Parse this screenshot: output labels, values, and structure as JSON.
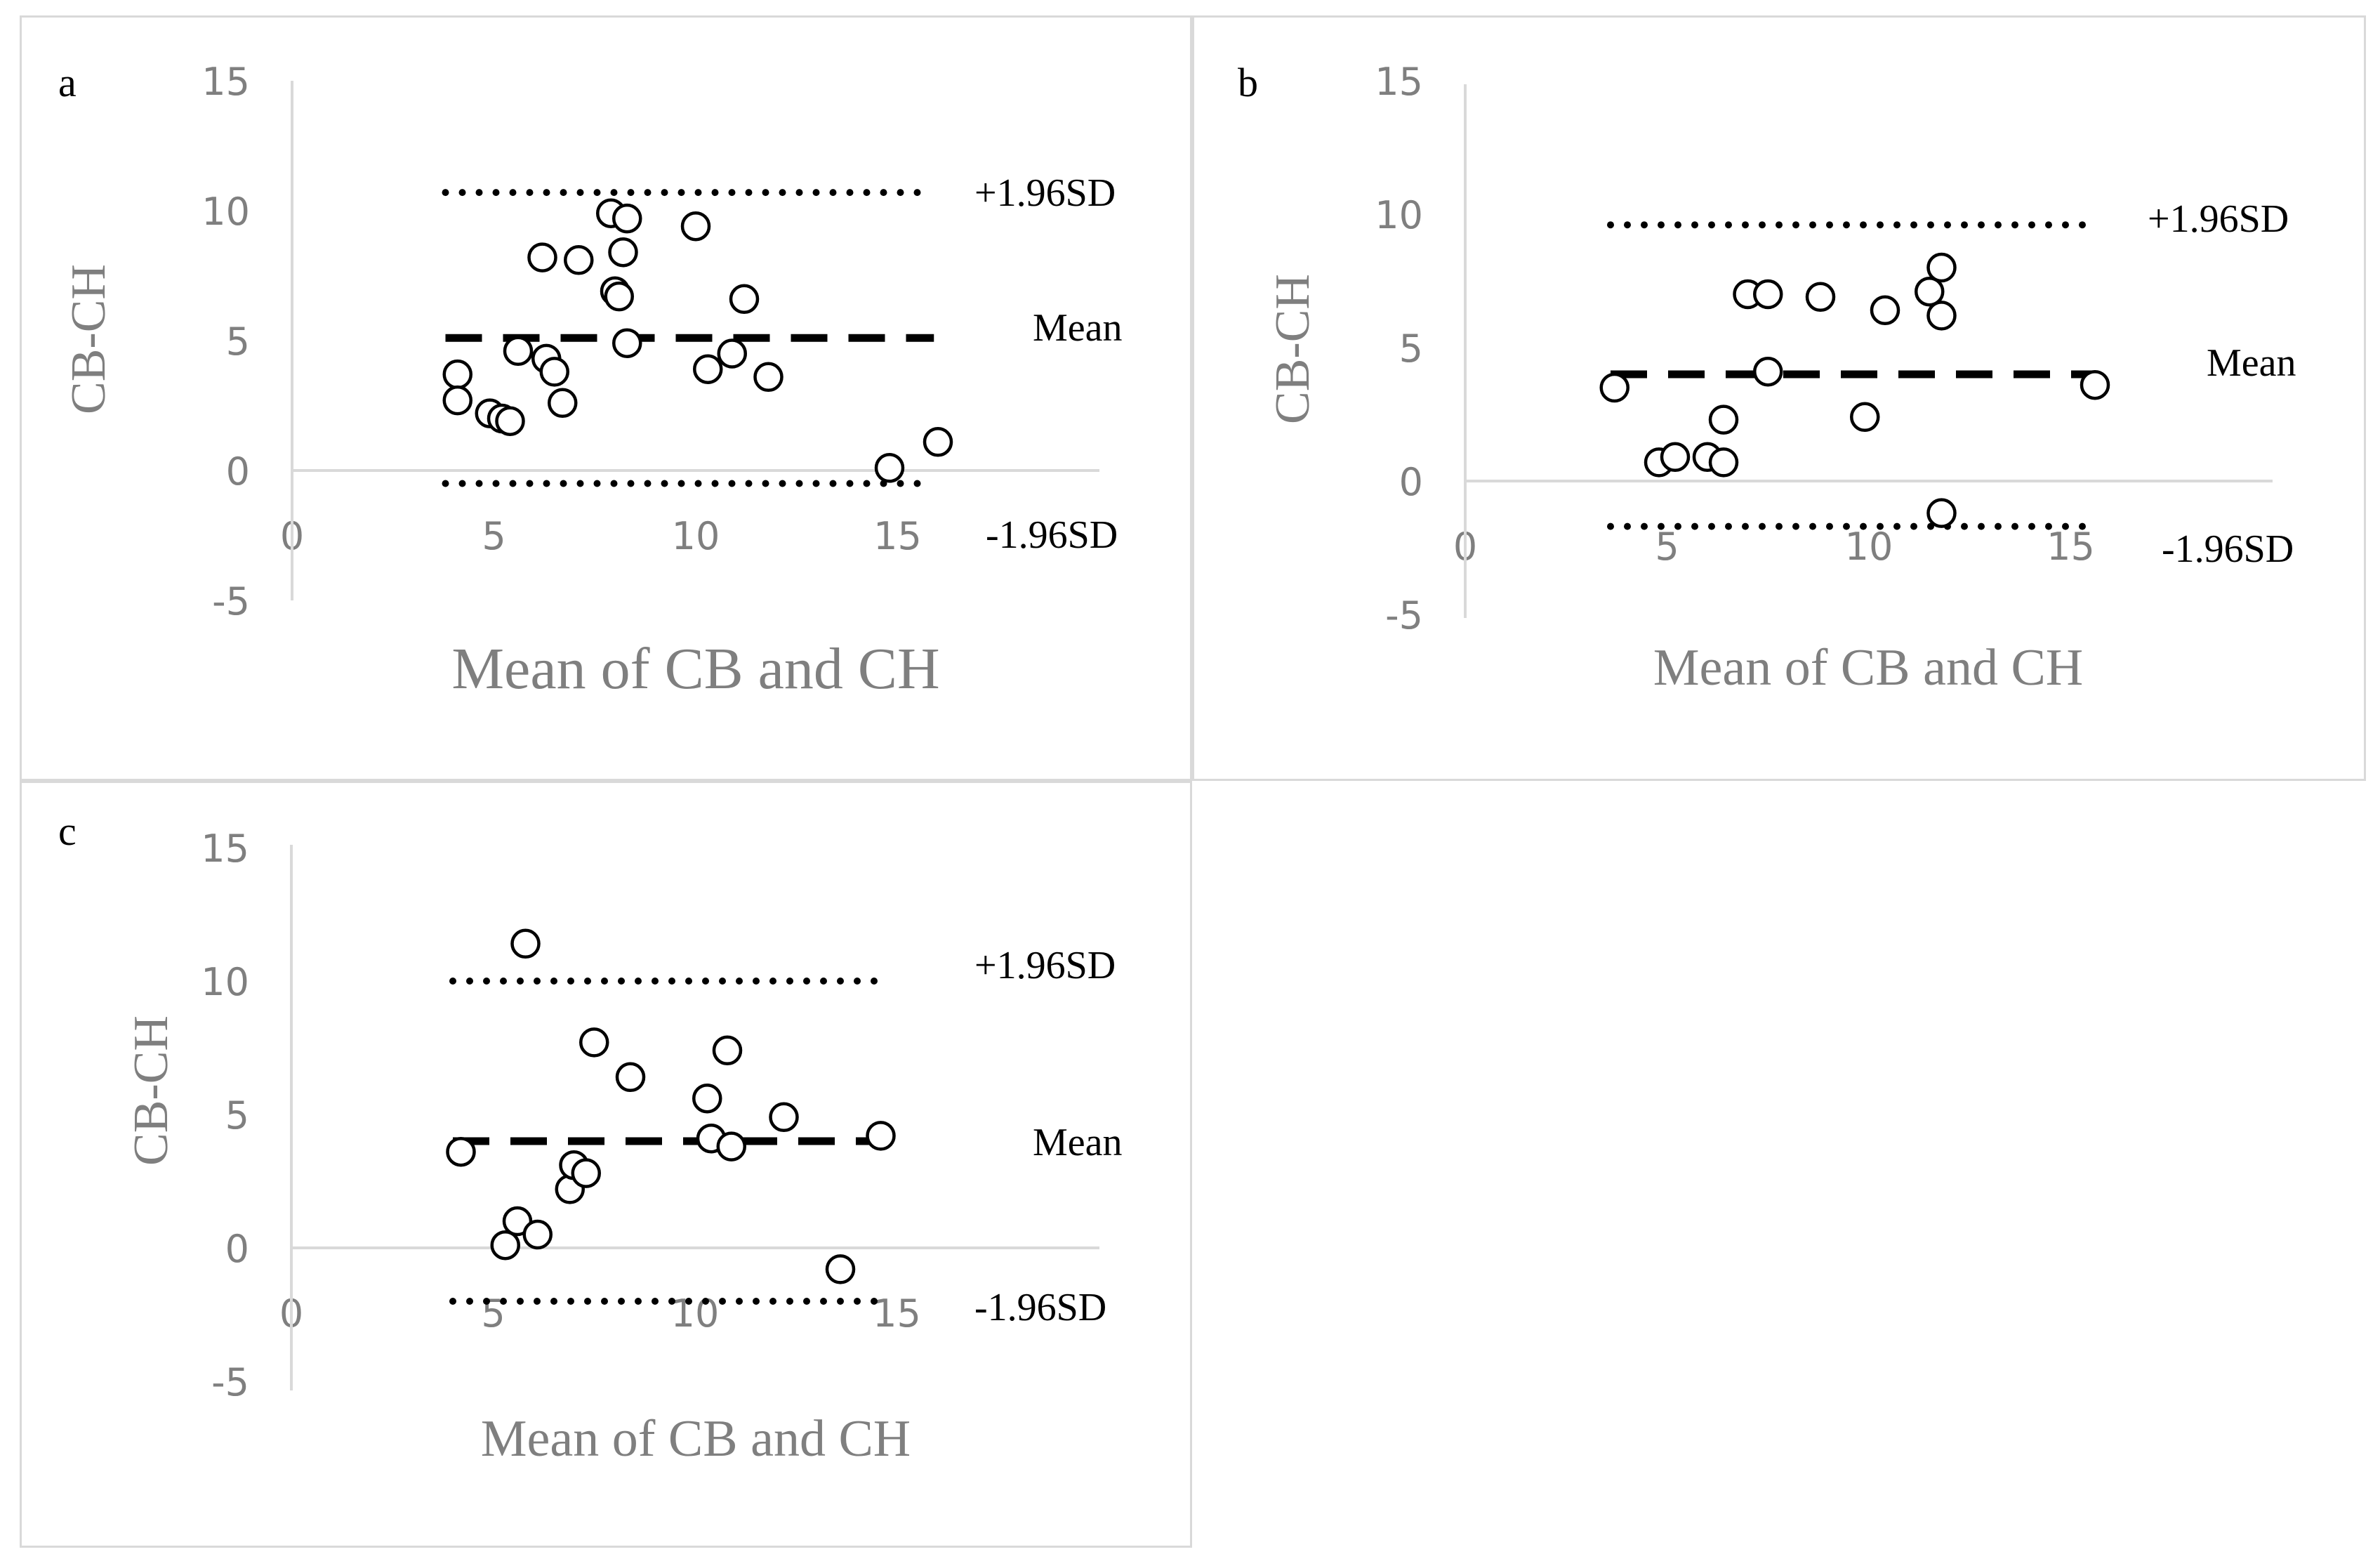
{
  "colors": {
    "axis": "#d9d9d9",
    "tick_text": "#7f7f7f",
    "ink": "#000000",
    "marker_fill": "#ffffff"
  },
  "chart_data": [
    {
      "type": "scatter",
      "panel_label": "a",
      "xlabel": "Mean of CB and CH",
      "ylabel": "CB-CH",
      "xlim": [
        0,
        20
      ],
      "ylim": [
        -5,
        15
      ],
      "x_ticks": [
        0,
        5,
        10,
        15
      ],
      "y_ticks": [
        15,
        10,
        5,
        0,
        -5
      ],
      "upper_line": {
        "label": "+1.96SD",
        "y": 10.7,
        "x_range": [
          3.8,
          15.9
        ]
      },
      "mean_line": {
        "label": "Mean",
        "y": 5.1,
        "x_range": [
          3.8,
          15.9
        ]
      },
      "lower_line": {
        "label": "-1.96SD",
        "y": -0.5,
        "x_range": [
          3.8,
          15.9
        ]
      },
      "points": [
        {
          "x": 4.1,
          "y": 3.7
        },
        {
          "x": 4.1,
          "y": 2.7
        },
        {
          "x": 4.9,
          "y": 2.2
        },
        {
          "x": 5.2,
          "y": 2.0
        },
        {
          "x": 5.4,
          "y": 1.9
        },
        {
          "x": 5.6,
          "y": 4.6
        },
        {
          "x": 6.2,
          "y": 8.2
        },
        {
          "x": 6.3,
          "y": 4.3
        },
        {
          "x": 6.5,
          "y": 3.8
        },
        {
          "x": 6.7,
          "y": 2.6
        },
        {
          "x": 7.1,
          "y": 8.1
        },
        {
          "x": 7.9,
          "y": 9.9
        },
        {
          "x": 8.0,
          "y": 6.9
        },
        {
          "x": 8.1,
          "y": 6.7
        },
        {
          "x": 8.2,
          "y": 8.4
        },
        {
          "x": 8.3,
          "y": 9.7
        },
        {
          "x": 8.3,
          "y": 4.9
        },
        {
          "x": 10.0,
          "y": 9.4
        },
        {
          "x": 10.3,
          "y": 3.9
        },
        {
          "x": 10.9,
          "y": 4.5
        },
        {
          "x": 11.2,
          "y": 6.6
        },
        {
          "x": 11.8,
          "y": 3.6
        },
        {
          "x": 14.8,
          "y": 0.1
        },
        {
          "x": 16.0,
          "y": 1.1
        }
      ]
    },
    {
      "type": "scatter",
      "panel_label": "b",
      "xlabel": "Mean of CB and CH",
      "ylabel": "CB-CH",
      "xlim": [
        0,
        20
      ],
      "ylim": [
        -5,
        15
      ],
      "x_ticks": [
        0,
        5,
        10,
        15
      ],
      "y_ticks": [
        15,
        10,
        5,
        0,
        -5
      ],
      "upper_line": {
        "label": "+1.96SD",
        "y": 9.6,
        "x_range": [
          3.6,
          15.6
        ]
      },
      "mean_line": {
        "label": "Mean",
        "y": 4.0,
        "x_range": [
          3.6,
          15.6
        ]
      },
      "lower_line": {
        "label": "-1.96SD",
        "y": -1.7,
        "x_range": [
          3.6,
          15.6
        ]
      },
      "points": [
        {
          "x": 3.7,
          "y": 3.5
        },
        {
          "x": 4.8,
          "y": 0.7
        },
        {
          "x": 5.2,
          "y": 0.9
        },
        {
          "x": 6.0,
          "y": 0.9
        },
        {
          "x": 6.4,
          "y": 0.7
        },
        {
          "x": 6.4,
          "y": 2.3
        },
        {
          "x": 7.0,
          "y": 7.0
        },
        {
          "x": 7.5,
          "y": 7.0
        },
        {
          "x": 7.5,
          "y": 4.1
        },
        {
          "x": 8.8,
          "y": 6.9
        },
        {
          "x": 9.9,
          "y": 2.4
        },
        {
          "x": 10.4,
          "y": 6.4
        },
        {
          "x": 11.5,
          "y": 7.1
        },
        {
          "x": 11.8,
          "y": 8.0
        },
        {
          "x": 11.8,
          "y": 6.2
        },
        {
          "x": 11.8,
          "y": -1.2
        },
        {
          "x": 15.6,
          "y": 3.6
        }
      ]
    },
    {
      "type": "scatter",
      "panel_label": "c",
      "xlabel": "Mean of CB and CH",
      "ylabel": "CB-CH",
      "xlim": [
        0,
        20
      ],
      "ylim": [
        -5,
        15
      ],
      "x_ticks": [
        0,
        5,
        10,
        15
      ],
      "y_ticks": [
        15,
        10,
        5,
        0,
        -5
      ],
      "upper_line": {
        "label": "+1.96SD",
        "y": 10.0,
        "x_range": [
          4.0,
          14.7
        ]
      },
      "mean_line": {
        "label": "Mean",
        "y": 4.0,
        "x_range": [
          4.0,
          14.7
        ]
      },
      "lower_line": {
        "label": "-1.96SD",
        "y": -2.0,
        "x_range": [
          4.0,
          14.7
        ]
      },
      "points": [
        {
          "x": 4.2,
          "y": 3.6
        },
        {
          "x": 5.3,
          "y": 0.1
        },
        {
          "x": 5.6,
          "y": 1.0
        },
        {
          "x": 5.8,
          "y": 11.4
        },
        {
          "x": 6.1,
          "y": 0.5
        },
        {
          "x": 6.9,
          "y": 2.2
        },
        {
          "x": 7.0,
          "y": 3.1
        },
        {
          "x": 7.3,
          "y": 2.8
        },
        {
          "x": 7.5,
          "y": 7.7
        },
        {
          "x": 8.4,
          "y": 6.4
        },
        {
          "x": 10.3,
          "y": 5.6
        },
        {
          "x": 10.4,
          "y": 4.1
        },
        {
          "x": 10.8,
          "y": 7.4
        },
        {
          "x": 10.9,
          "y": 3.8
        },
        {
          "x": 12.2,
          "y": 4.9
        },
        {
          "x": 13.6,
          "y": -0.8
        },
        {
          "x": 14.6,
          "y": 4.2
        }
      ]
    }
  ]
}
